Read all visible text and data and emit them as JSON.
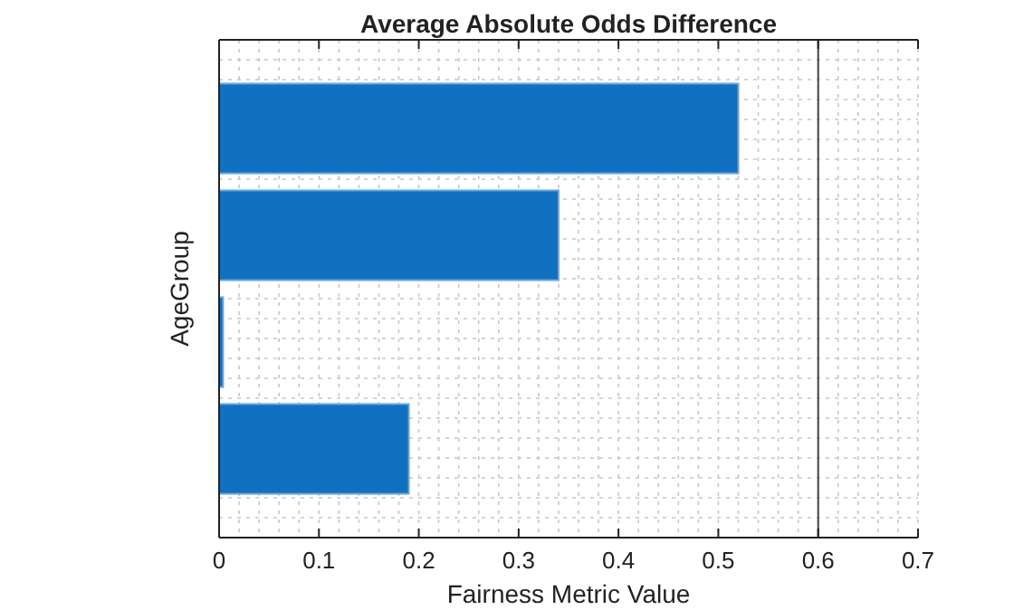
{
  "chart_data": {
    "type": "bar",
    "orientation": "horizontal",
    "title": "Average Absolute Odds Difference",
    "xlabel": "Fairness Metric Value",
    "ylabel": "AgeGroup",
    "categories": [
      null,
      null,
      null,
      null
    ],
    "values": [
      0.52,
      0.34,
      0.004,
      0.19
    ],
    "color": "#1170bf",
    "xlim": [
      0,
      0.7
    ],
    "xticks": [
      0,
      0.1,
      0.2,
      0.3,
      0.4,
      0.5,
      0.6,
      0.7
    ],
    "ref_lines": [
      {
        "axis": "x",
        "value": 0.6,
        "color": "#444444"
      }
    ],
    "grid": true
  }
}
